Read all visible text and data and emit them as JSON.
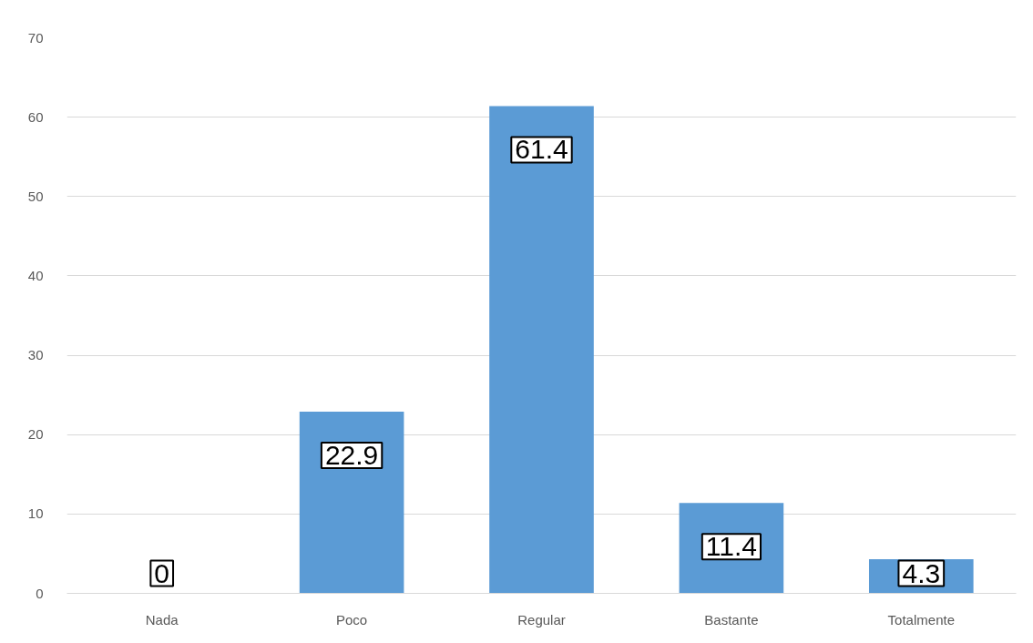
{
  "chart_data": {
    "type": "bar",
    "categories": [
      "Nada",
      "Poco",
      "Regular",
      "Bastante",
      "Totalmente"
    ],
    "values": [
      0,
      22.9,
      61.4,
      11.4,
      4.3
    ],
    "color": "#5b9bd5",
    "ylim": [
      0,
      70
    ],
    "yticks": [
      0,
      10,
      20,
      30,
      40,
      50,
      60,
      70
    ],
    "grid": "y",
    "data_labels": true
  }
}
